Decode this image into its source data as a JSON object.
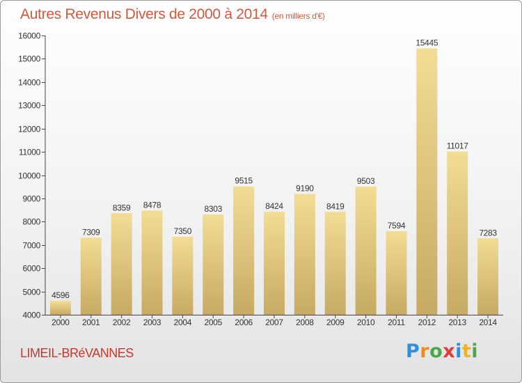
{
  "title": "Autres Revenus Divers de 2000 à 2014",
  "unit": "(en milliers d'€)",
  "commune": "LIMEIL-BRéVANNES",
  "brand": {
    "letters": [
      "P",
      "r",
      "o",
      "x",
      "i",
      "t",
      "i"
    ]
  },
  "colors": {
    "bar_top": "#f3dc94",
    "bar_bottom": "#c7aa63",
    "title": "#d05a3d",
    "commune": "#c8372d"
  },
  "chart_data": {
    "type": "bar",
    "title": "Autres Revenus Divers de 2000 à 2014",
    "xlabel": "",
    "ylabel": "",
    "categories": [
      "2000",
      "2001",
      "2002",
      "2003",
      "2004",
      "2005",
      "2006",
      "2007",
      "2008",
      "2009",
      "2010",
      "2011",
      "2012",
      "2013",
      "2014"
    ],
    "values": [
      4596,
      7309,
      8359,
      8478,
      7350,
      8303,
      9515,
      8424,
      9190,
      8419,
      9503,
      7594,
      15445,
      11017,
      7283
    ],
    "ylim": [
      4000,
      16000
    ],
    "yticks": [
      4000,
      5000,
      6000,
      7000,
      8000,
      9000,
      10000,
      11000,
      12000,
      13000,
      14000,
      15000,
      16000
    ],
    "grid": false,
    "legend": "none"
  }
}
